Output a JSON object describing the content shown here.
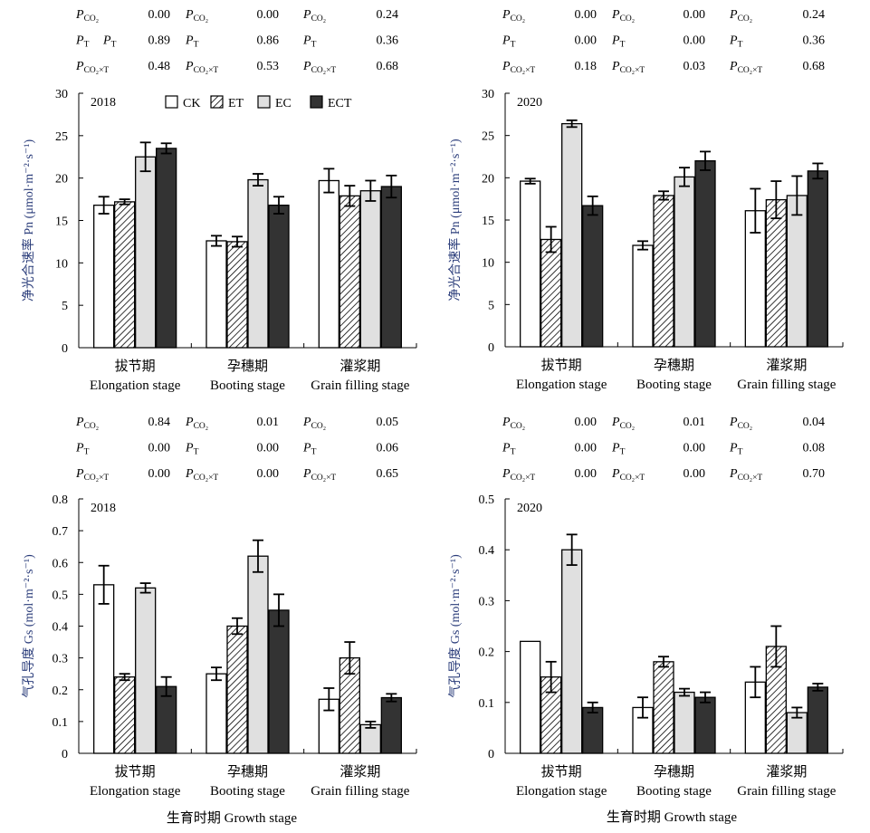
{
  "colors": {
    "CK": "#ffffff",
    "ET": "hatch",
    "EC": "#e0e0e0",
    "ECT": "#333333"
  },
  "legend_symbol": "P",
  "xlabel_shared": "生育时期 Growth stage",
  "chart_data": [
    {
      "type": "bar",
      "year_label": "2018",
      "ylabel": "净光合速率 Pn (μmol·m⁻²·s⁻¹)",
      "ylim": [
        0,
        30
      ],
      "yticks": [
        "0",
        "5",
        "10",
        "15",
        "20",
        "25",
        "30"
      ],
      "categories_cn": [
        "拔节期",
        "孕穗期",
        "灌浆期"
      ],
      "categories_en": [
        "Elongation stage",
        "Booting stage",
        "Grain filling stage"
      ],
      "legend": [
        "CK",
        "ET",
        "EC",
        "ECT"
      ],
      "series": [
        {
          "name": "CK",
          "values": [
            16.8,
            12.6,
            19.7
          ],
          "errors": [
            1.0,
            0.6,
            1.4
          ]
        },
        {
          "name": "ET",
          "values": [
            17.2,
            12.5,
            17.9
          ],
          "errors": [
            0.3,
            0.6,
            1.2
          ]
        },
        {
          "name": "EC",
          "values": [
            22.5,
            19.8,
            18.5
          ],
          "errors": [
            1.7,
            0.7,
            1.2
          ]
        },
        {
          "name": "ECT",
          "values": [
            23.5,
            16.8,
            19.0
          ],
          "errors": [
            0.6,
            1.0,
            1.3
          ]
        }
      ],
      "pvalues": [
        [
          {
            "sym": "CO₂",
            "val": "0.00"
          },
          {
            "sym": "CO₂",
            "val": "0.00"
          },
          {
            "sym": "CO₂",
            "val": "0.24"
          }
        ],
        [
          {
            "sym": "T",
            "val": "0.89",
            "extra": "P_T"
          },
          {
            "sym": "T",
            "val": "0.86"
          },
          {
            "sym": "T",
            "val": "0.36"
          }
        ],
        [
          {
            "sym": "CO₂×T",
            "val": "0.48"
          },
          {
            "sym": "CO₂×T",
            "val": "0.53"
          },
          {
            "sym": "CO₂×T",
            "val": "0.68"
          }
        ]
      ]
    },
    {
      "type": "bar",
      "year_label": "2020",
      "ylabel": "净光合速率 Pn (μmol·m⁻²·s⁻¹)",
      "ylim": [
        0,
        30
      ],
      "yticks": [
        "0",
        "5",
        "10",
        "15",
        "20",
        "25",
        "30"
      ],
      "categories_cn": [
        "拔节期",
        "孕穗期",
        "灌浆期"
      ],
      "categories_en": [
        "Elongation stage",
        "Booting stage",
        "Grain filling stage"
      ],
      "series": [
        {
          "name": "CK",
          "values": [
            19.6,
            12.0,
            16.1
          ],
          "errors": [
            0.3,
            0.5,
            2.6
          ]
        },
        {
          "name": "ET",
          "values": [
            12.7,
            17.9,
            17.4
          ],
          "errors": [
            1.5,
            0.5,
            2.2
          ]
        },
        {
          "name": "EC",
          "values": [
            26.4,
            20.1,
            17.9
          ],
          "errors": [
            0.4,
            1.1,
            2.3
          ]
        },
        {
          "name": "ECT",
          "values": [
            16.7,
            22.0,
            20.8
          ],
          "errors": [
            1.1,
            1.1,
            0.9
          ]
        }
      ],
      "pvalues": [
        [
          {
            "sym": "CO₂",
            "val": "0.00"
          },
          {
            "sym": "CO₂",
            "val": "0.00"
          },
          {
            "sym": "CO₂",
            "val": "0.24"
          }
        ],
        [
          {
            "sym": "T",
            "val": "0.00"
          },
          {
            "sym": "T",
            "val": "0.00"
          },
          {
            "sym": "T",
            "val": "0.36"
          }
        ],
        [
          {
            "sym": "CO₂×T",
            "val": "0.18"
          },
          {
            "sym": "CO₂×T",
            "val": "0.03"
          },
          {
            "sym": "CO₂×T",
            "val": "0.68"
          }
        ]
      ]
    },
    {
      "type": "bar",
      "year_label": "2018",
      "ylabel": "气孔导度 Gs (mol·m⁻²·s⁻¹)",
      "ylim": [
        0,
        0.8
      ],
      "yticks": [
        "0",
        "0.1",
        "0.2",
        "0.3",
        "0.4",
        "0.5",
        "0.6",
        "0.7",
        "0.8"
      ],
      "categories_cn": [
        "拔节期",
        "孕穗期",
        "灌浆期"
      ],
      "categories_en": [
        "Elongation stage",
        "Booting stage",
        "Grain filling stage"
      ],
      "series": [
        {
          "name": "CK",
          "values": [
            0.53,
            0.25,
            0.17
          ],
          "errors": [
            0.06,
            0.02,
            0.035
          ]
        },
        {
          "name": "ET",
          "values": [
            0.24,
            0.4,
            0.3
          ],
          "errors": [
            0.01,
            0.025,
            0.05
          ]
        },
        {
          "name": "EC",
          "values": [
            0.52,
            0.62,
            0.09
          ],
          "errors": [
            0.015,
            0.05,
            0.01
          ]
        },
        {
          "name": "ECT",
          "values": [
            0.21,
            0.45,
            0.175
          ],
          "errors": [
            0.03,
            0.05,
            0.012
          ]
        }
      ],
      "pvalues": [
        [
          {
            "sym": "CO₂",
            "val": "0.84"
          },
          {
            "sym": "CO₂",
            "val": "0.01"
          },
          {
            "sym": "CO₂",
            "val": "0.05"
          }
        ],
        [
          {
            "sym": "T",
            "val": "0.00"
          },
          {
            "sym": "T",
            "val": "0.00"
          },
          {
            "sym": "T",
            "val": "0.06"
          }
        ],
        [
          {
            "sym": "CO₂×T",
            "val": "0.00"
          },
          {
            "sym": "CO₂×T",
            "val": "0.00"
          },
          {
            "sym": "CO₂×T",
            "val": "0.65"
          }
        ]
      ]
    },
    {
      "type": "bar",
      "year_label": "2020",
      "ylabel": "气孔导度 Gs (mol·m⁻²·s⁻¹)",
      "ylim": [
        0,
        0.5
      ],
      "yticks": [
        "0",
        "0.1",
        "0.2",
        "0.3",
        "0.4",
        "0.5"
      ],
      "categories_cn": [
        "拔节期",
        "孕穗期",
        "灌浆期"
      ],
      "categories_en": [
        "Elongation stage",
        "Booting stage",
        "Grain filling stage"
      ],
      "series": [
        {
          "name": "CK",
          "values": [
            0.22,
            0.09,
            0.14
          ],
          "errors": [
            0,
            0.02,
            0.03
          ]
        },
        {
          "name": "ET",
          "values": [
            0.15,
            0.18,
            0.21
          ],
          "errors": [
            0.03,
            0.01,
            0.04
          ]
        },
        {
          "name": "EC",
          "values": [
            0.4,
            0.12,
            0.08
          ],
          "errors": [
            0.03,
            0.007,
            0.01
          ]
        },
        {
          "name": "ECT",
          "values": [
            0.09,
            0.11,
            0.13
          ],
          "errors": [
            0.01,
            0.01,
            0.007
          ]
        }
      ],
      "pvalues": [
        [
          {
            "sym": "CO₂",
            "val": "0.00"
          },
          {
            "sym": "CO₂",
            "val": "0.01"
          },
          {
            "sym": "CO₂",
            "val": "0.04"
          }
        ],
        [
          {
            "sym": "T",
            "val": "0.00"
          },
          {
            "sym": "T",
            "val": "0.00"
          },
          {
            "sym": "T",
            "val": "0.08"
          }
        ],
        [
          {
            "sym": "CO₂×T",
            "val": "0.00"
          },
          {
            "sym": "CO₂×T",
            "val": "0.00"
          },
          {
            "sym": "CO₂×T",
            "val": "0.70"
          }
        ]
      ]
    }
  ]
}
